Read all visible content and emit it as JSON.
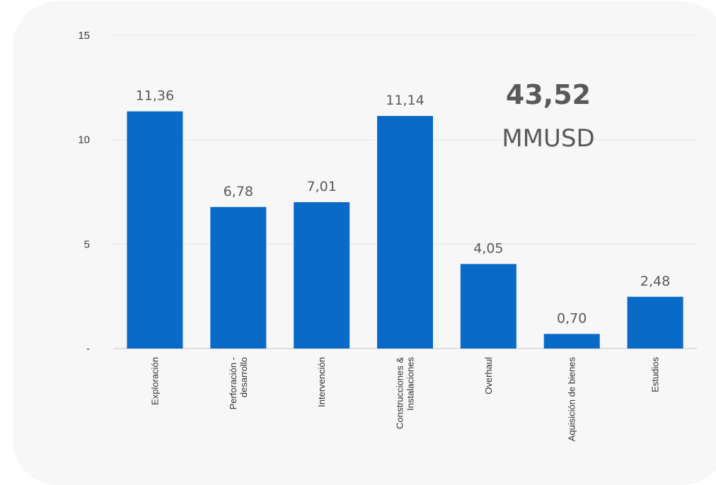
{
  "total": {
    "value": "43,52",
    "unit": "MMUSD"
  },
  "chart_data": {
    "type": "bar",
    "categories": [
      [
        "Exploración"
      ],
      [
        "Perforación -",
        "desarrollo"
      ],
      [
        "Intervención"
      ],
      [
        "Construcciones &",
        "Instalaciones"
      ],
      [
        "Overhaul"
      ],
      [
        "Aquisición de bienes"
      ],
      [
        "Estudios"
      ]
    ],
    "values": [
      11.36,
      6.78,
      7.01,
      11.14,
      4.05,
      0.7,
      2.48
    ],
    "value_labels": [
      "11,36",
      "6,78",
      "7,01",
      "11,14",
      "4,05",
      "0,70",
      "2,48"
    ],
    "ylim": [
      0,
      15
    ],
    "yticks": [
      {
        "value": 0,
        "label": "-"
      },
      {
        "value": 5,
        "label": "5"
      },
      {
        "value": 10,
        "label": "10"
      },
      {
        "value": 15,
        "label": "15"
      }
    ],
    "bar_color": "#0a6ac8",
    "grid": true
  }
}
